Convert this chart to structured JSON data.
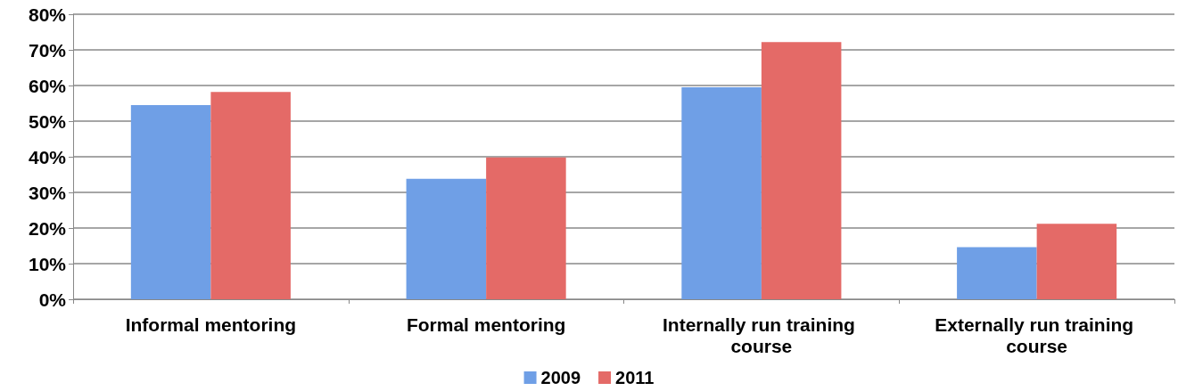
{
  "chart_data": {
    "type": "bar",
    "categories": [
      "Informal mentoring",
      "Formal mentoring",
      "Internally run training course",
      "Externally run training course"
    ],
    "series": [
      {
        "name": "2009",
        "color": "#6f9fe6",
        "values": [
          54.5,
          33.8,
          59.5,
          14.6
        ]
      },
      {
        "name": "2011",
        "color": "#e46a67",
        "values": [
          58.2,
          39.8,
          72.2,
          21.2
        ]
      }
    ],
    "ylim": [
      0,
      80
    ],
    "yticks": [
      {
        "value": 0,
        "label": "0%"
      },
      {
        "value": 10,
        "label": "10%"
      },
      {
        "value": 20,
        "label": "20%"
      },
      {
        "value": 30,
        "label": "30%"
      },
      {
        "value": 40,
        "label": "40%"
      },
      {
        "value": 50,
        "label": "50%"
      },
      {
        "value": 60,
        "label": "60%"
      },
      {
        "value": 70,
        "label": "70%"
      },
      {
        "value": 80,
        "label": "80%"
      }
    ],
    "grid": "y",
    "legend": "bottom"
  }
}
